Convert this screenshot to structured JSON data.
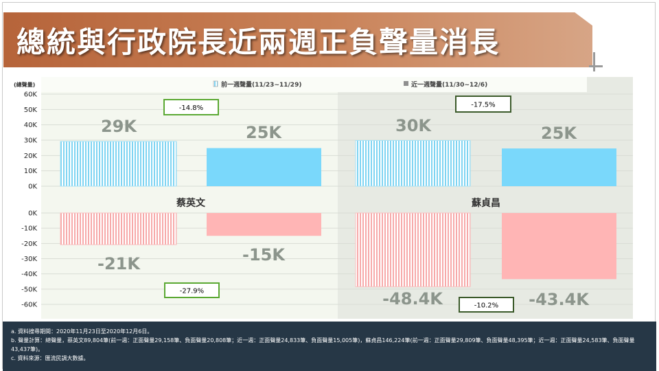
{
  "title": "總統與行政院長近兩週正負聲量消長",
  "chart_data": {
    "type": "bar",
    "ylabel": "(總聲量)",
    "categories": [
      "蔡英文",
      "蘇貞昌"
    ],
    "legend": [
      "前一週聲量(11/23~11/29)",
      "近一週聲量(11/30~12/6)"
    ],
    "positive": {
      "ylim": [
        0,
        60000
      ],
      "ticks": [
        {
          "v": 60000,
          "t": "60K"
        },
        {
          "v": 50000,
          "t": "50K"
        },
        {
          "v": 40000,
          "t": "40K"
        },
        {
          "v": 30000,
          "t": "30K"
        },
        {
          "v": 20000,
          "t": "20K"
        },
        {
          "v": 10000,
          "t": "10K"
        },
        {
          "v": 0,
          "t": "0K"
        }
      ],
      "series": [
        {
          "name": "前一週聲量(11/23~11/29)",
          "values": [
            29158,
            29809
          ],
          "labels": [
            "29K",
            "30K"
          ]
        },
        {
          "name": "近一週聲量(11/30~12/6)",
          "values": [
            24833,
            24583
          ],
          "labels": [
            "25K",
            "25K"
          ]
        }
      ],
      "change": [
        "-14.8%",
        "-17.5%"
      ]
    },
    "negative": {
      "ylim": [
        -60000,
        0
      ],
      "ticks": [
        {
          "v": 0,
          "t": "0K"
        },
        {
          "v": -10000,
          "t": "-10K"
        },
        {
          "v": -20000,
          "t": "-20K"
        },
        {
          "v": -30000,
          "t": "-30K"
        },
        {
          "v": -40000,
          "t": "-40K"
        },
        {
          "v": -50000,
          "t": "-50K"
        },
        {
          "v": -60000,
          "t": "-60K"
        }
      ],
      "series": [
        {
          "name": "前一週聲量(11/23~11/29)",
          "values": [
            -20808,
            -48395
          ],
          "labels": [
            "-21K",
            "-48.4K"
          ]
        },
        {
          "name": "近一週聲量(11/30~12/6)",
          "values": [
            -15005,
            -43437
          ],
          "labels": [
            "-15K",
            "-43.4K"
          ]
        }
      ],
      "change": [
        "-27.9%",
        "-10.2%"
      ]
    },
    "colors": {
      "pos": "#7ad8fb",
      "pos_prev": "#9ee3fc",
      "neg": "#ffb5b5",
      "neg_prev": "#f5a3a3"
    }
  },
  "notes": [
    "a. 資料搜尋期間：2020年11月23日至2020年12月6日。",
    "b. 聲量計算：總聲量，蔡英文89,804筆(前一週：正面聲量29,158筆、負面聲量20,808筆；近一週：正面聲量24,833筆、負面聲量15,005筆)，蘇貞昌146,224筆(前一週：正面聲量29,809筆、負面聲量48,395筆；近一週：正面聲量24,583筆、負面聲量43,437筆)。",
    "c. 資料來源：匯流民調大數據。"
  ]
}
